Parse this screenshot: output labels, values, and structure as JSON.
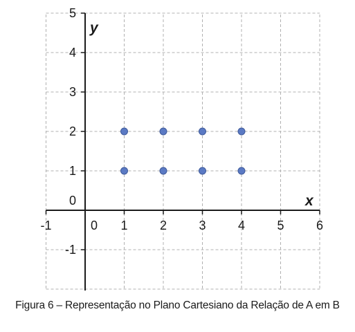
{
  "caption": "Figura 6 – Representação no Plano Cartesiano da Relação de A em B",
  "chart_data": {
    "type": "scatter",
    "title": "",
    "xlabel": "x",
    "ylabel": "y",
    "xlim": [
      -1,
      6
    ],
    "ylim": [
      -2,
      5
    ],
    "grid": true,
    "x_tick_labels": [
      "-1",
      "0",
      "1",
      "2",
      "3",
      "4",
      "5",
      "6"
    ],
    "y_tick_labels": [
      "-1",
      "0",
      "1",
      "2",
      "3",
      "4",
      "5"
    ],
    "series": [
      {
        "points": [
          {
            "x": 1,
            "y": 1
          },
          {
            "x": 2,
            "y": 1
          },
          {
            "x": 3,
            "y": 1
          },
          {
            "x": 4,
            "y": 1
          },
          {
            "x": 1,
            "y": 2
          },
          {
            "x": 2,
            "y": 2
          },
          {
            "x": 3,
            "y": 2
          },
          {
            "x": 4,
            "y": 2
          }
        ]
      }
    ],
    "point_color": "#5b7ac4",
    "grid_color": "#b0b0b0"
  }
}
